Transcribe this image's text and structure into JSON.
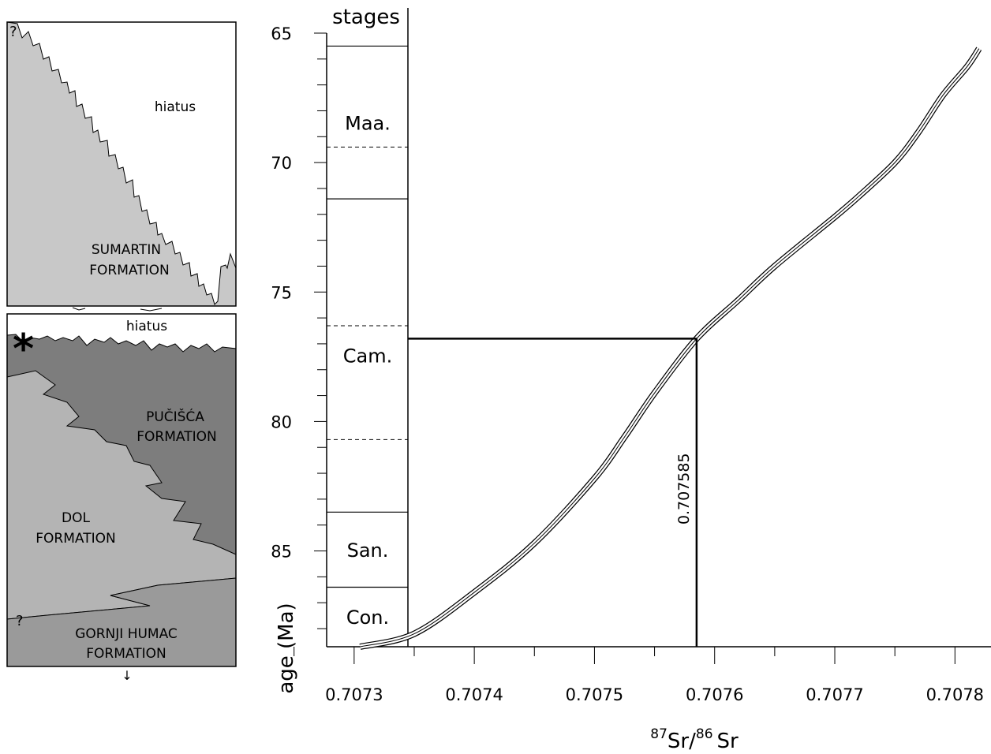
{
  "column": {
    "labels": {
      "hiatus_upper": "hiatus",
      "hiatus_lower": "hiatus",
      "sumartin": [
        "SUMARTIN",
        "FORMATION"
      ],
      "pucisca": [
        "PUČIŠĆA",
        "FORMATION"
      ],
      "dol": [
        "DOL",
        "FORMATION"
      ],
      "gornji": [
        "GORNJI HUMAC",
        "FORMATION"
      ],
      "question_mark": "?",
      "sample_marker": "*",
      "down_arrow": "↓"
    },
    "colors": {
      "light_formation": "#c8c8c8",
      "mid_formation": "#b4b4b4",
      "dark_formation": "#7d7d7d",
      "gornji_formation": "#9a9a9a"
    }
  },
  "chart_data": {
    "type": "line",
    "title": "",
    "xlabel_parts": {
      "sup1": "87",
      "base1": "Sr/",
      "sup2": "86",
      "base2": "Sr"
    },
    "ylabel": "age (Ma)",
    "stages_header": "stages",
    "xlim": [
      0.70722,
      0.70783
    ],
    "ylim": [
      65,
      88.7
    ],
    "y_inverted": true,
    "x_ticks": [
      0.7073,
      0.7074,
      0.7075,
      0.7076,
      0.7077,
      0.7078
    ],
    "x_tick_labels": [
      "0.7073",
      "0.7074",
      "0.7075",
      "0.7076",
      "0.7077",
      "0.7078"
    ],
    "y_ticks": [
      65,
      70,
      75,
      80,
      85
    ],
    "y_tick_labels": [
      "65",
      "70",
      "75",
      "80",
      "85"
    ],
    "stages": [
      {
        "name": "Maa.",
        "top": 65.5,
        "bottom": 71.4
      },
      {
        "name": "Cam.",
        "top": 71.4,
        "bottom": 83.5
      },
      {
        "name": "San.",
        "top": 83.5,
        "bottom": 86.4
      },
      {
        "name": "Con.",
        "top": 86.4,
        "bottom": 88.7
      }
    ],
    "substage_dashed_boundaries": [
      69.4,
      76.3,
      80.7
    ],
    "series": [
      {
        "x": [
          0.707305,
          0.70735,
          0.7074,
          0.70745,
          0.7075,
          0.707525,
          0.70755,
          0.707585,
          0.70762,
          0.70765,
          0.7077,
          0.70772,
          0.70775,
          0.70777,
          0.70779,
          0.70781,
          0.70782
        ],
        "y": [
          88.7,
          88.2,
          86.6,
          84.7,
          82.2,
          80.6,
          78.9,
          76.8,
          75.3,
          74.0,
          72.1,
          71.3,
          70.0,
          68.8,
          67.4,
          66.3,
          65.6
        ]
      }
    ],
    "annotation": {
      "x": 0.707585,
      "y": 76.8,
      "label": "0.707585"
    }
  }
}
